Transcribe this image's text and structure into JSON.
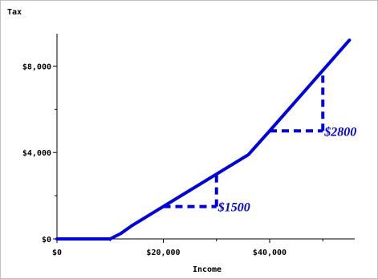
{
  "chart_data": {
    "type": "line",
    "title": "",
    "xlabel": "Income",
    "ylabel": "Tax",
    "xlim": [
      0,
      56000
    ],
    "ylim": [
      0,
      9500
    ],
    "x_ticks": [
      {
        "value": 0,
        "label": "$0"
      },
      {
        "value": 20000,
        "label": "$20,000"
      },
      {
        "value": 40000,
        "label": "$40,000"
      }
    ],
    "x_minor_ticks": [
      10000,
      30000,
      50000
    ],
    "y_ticks": [
      {
        "value": 0,
        "label": "$0"
      },
      {
        "value": 4000,
        "label": "$4,000"
      },
      {
        "value": 8000,
        "label": "$8,000"
      }
    ],
    "y_minor_ticks": [
      2000,
      6000
    ],
    "series": [
      {
        "name": "",
        "color": "#0000dd",
        "x": [
          0,
          10000,
          12000,
          14000,
          17000,
          20000,
          25000,
          30000,
          33000,
          36000,
          40000,
          45000,
          50000,
          55000
        ],
        "y": [
          0,
          0,
          250,
          600,
          1050,
          1500,
          2250,
          3000,
          3450,
          3900,
          5000,
          6400,
          7800,
          9200
        ]
      }
    ],
    "annotations": [
      {
        "label": "$1500",
        "x_from": 20000,
        "x_to": 30000,
        "y_base": 1500,
        "y_top": 3000
      },
      {
        "label": "$2800",
        "x_from": 40000,
        "x_to": 50000,
        "y_base": 5000,
        "y_top": 7800
      }
    ],
    "annotation_color": "#0000dd",
    "grid": false
  }
}
